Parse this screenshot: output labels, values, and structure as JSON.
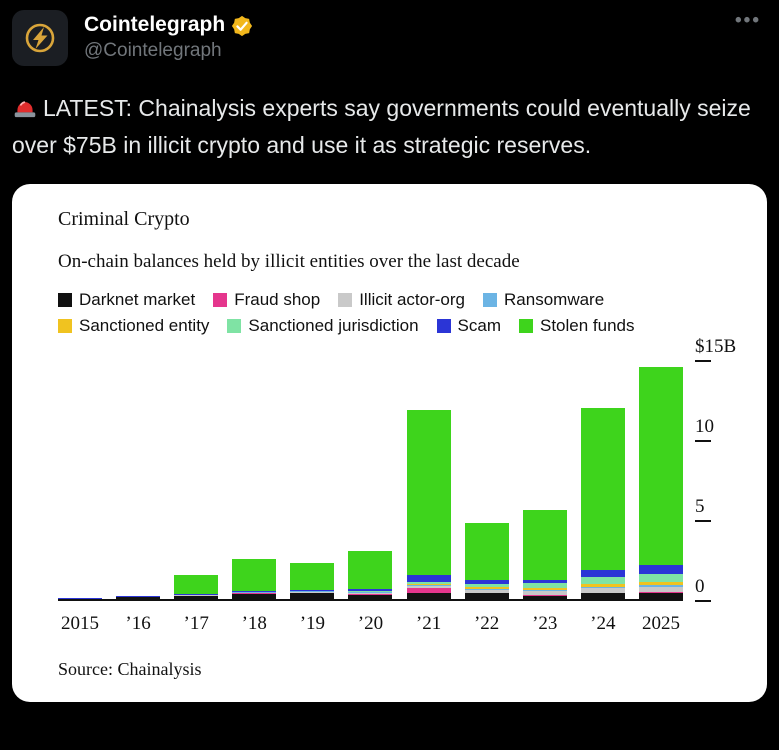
{
  "tweet": {
    "display_name": "Cointelegraph",
    "handle": "@Cointelegraph",
    "more_label": "•••",
    "emoji": "🚨",
    "text": "LATEST: Chainalysis experts say governments could eventually seize over $75B in illicit crypto and use it as strategic reserves.",
    "accent_gold": "#f2b71c"
  },
  "chart_data": {
    "type": "bar",
    "stacked": true,
    "title": "Criminal Crypto",
    "subtitle": "On-chain balances held by illicit entities over the last decade",
    "source": "Source: Chainalysis",
    "unit": "$B",
    "categories": [
      "2015",
      "’16",
      "’17",
      "’18",
      "’19",
      "’20",
      "’21",
      "’22",
      "’23",
      "’24",
      "2025"
    ],
    "ylim": [
      0,
      15
    ],
    "yticks": [
      {
        "label": "$15B",
        "value": 15
      },
      {
        "label": "10",
        "value": 10
      },
      {
        "label": "5",
        "value": 5
      },
      {
        "label": "0",
        "value": 0
      }
    ],
    "legend_position": "top",
    "grid": false,
    "series": [
      {
        "name": "Darknet market",
        "color": "#111111",
        "values": [
          0.03,
          0.1,
          0.2,
          0.3,
          0.35,
          0.25,
          0.4,
          0.35,
          0.2,
          0.35,
          0.4
        ]
      },
      {
        "name": "Fraud shop",
        "color": "#e5368d",
        "values": [
          0,
          0.01,
          0.02,
          0.05,
          0.05,
          0.05,
          0.3,
          0.05,
          0.03,
          0.03,
          0.03
        ]
      },
      {
        "name": "Illicit actor-org",
        "color": "#c9c9c9",
        "values": [
          0,
          0.01,
          0.03,
          0.05,
          0.05,
          0.08,
          0.1,
          0.15,
          0.25,
          0.3,
          0.35
        ]
      },
      {
        "name": "Ransomware",
        "color": "#6cb4e4",
        "values": [
          0,
          0.01,
          0.02,
          0.03,
          0.03,
          0.05,
          0.08,
          0.08,
          0.1,
          0.1,
          0.12
        ]
      },
      {
        "name": "Sanctioned entity",
        "color": "#f0c320",
        "values": [
          0,
          0,
          0,
          0,
          0,
          0.02,
          0.05,
          0.1,
          0.1,
          0.15,
          0.18
        ]
      },
      {
        "name": "Sanctioned jurisdiction",
        "color": "#7fe3a4",
        "values": [
          0,
          0,
          0,
          0,
          0,
          0.03,
          0.15,
          0.2,
          0.3,
          0.45,
          0.5
        ]
      },
      {
        "name": "Scam",
        "color": "#2b35d6",
        "values": [
          0.01,
          0.03,
          0.05,
          0.1,
          0.1,
          0.15,
          0.45,
          0.25,
          0.2,
          0.45,
          0.55
        ]
      },
      {
        "name": "Stolen funds",
        "color": "#3ed41c",
        "values": [
          0.02,
          0.06,
          1.2,
          2.0,
          1.7,
          2.4,
          10.3,
          3.6,
          4.4,
          10.1,
          12.4
        ]
      }
    ]
  }
}
